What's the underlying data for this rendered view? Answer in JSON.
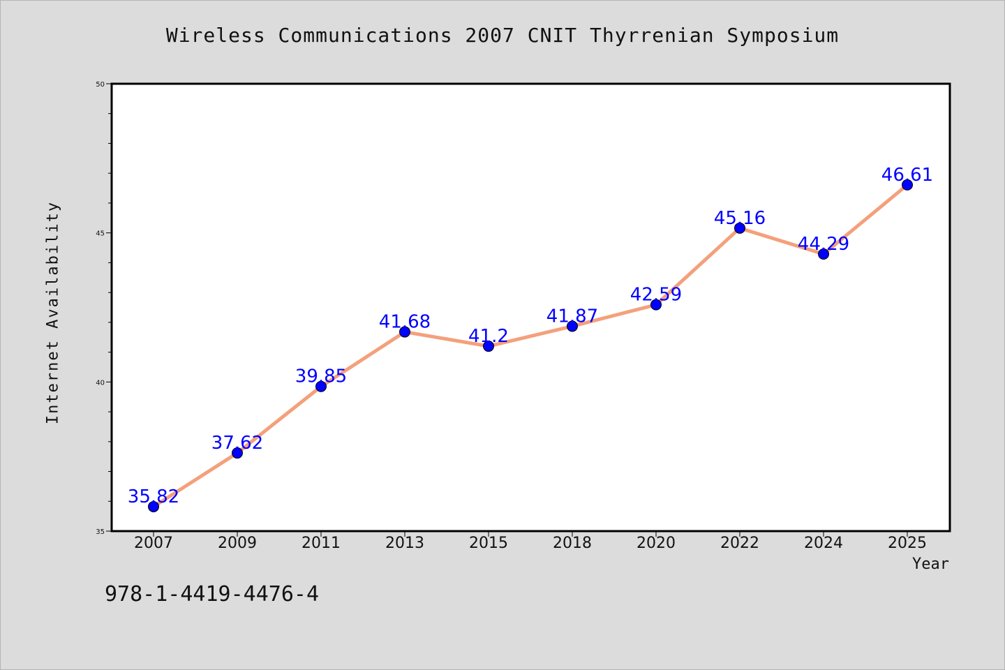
{
  "chart_data": {
    "type": "line",
    "title": "Wireless Communications 2007 CNIT Thyrrenian Symposium",
    "xlabel": "Year",
    "ylabel": "Internet Availability",
    "categories": [
      "2007",
      "2009",
      "2011",
      "2013",
      "2015",
      "2018",
      "2020",
      "2022",
      "2024",
      "2025"
    ],
    "values": [
      35.82,
      37.62,
      39.85,
      41.68,
      41.2,
      41.87,
      42.59,
      45.16,
      44.29,
      46.61
    ],
    "value_labels": [
      "35.82",
      "37.62",
      "39.85",
      "41.68",
      "41.2",
      "41.87",
      "42.59",
      "45.16",
      "44.29",
      "46.61"
    ],
    "ylim": [
      35,
      50
    ],
    "yticks": [
      "35",
      "40",
      "45",
      "50"
    ],
    "grid": false,
    "legend": "none",
    "colors": {
      "line": "#f4a07c",
      "marker": "#0000ff",
      "label": "#0000ff",
      "background": "#dcdcdc",
      "plot_background": "#ffffff"
    }
  },
  "footer_text": "978-1-4419-4476-4"
}
